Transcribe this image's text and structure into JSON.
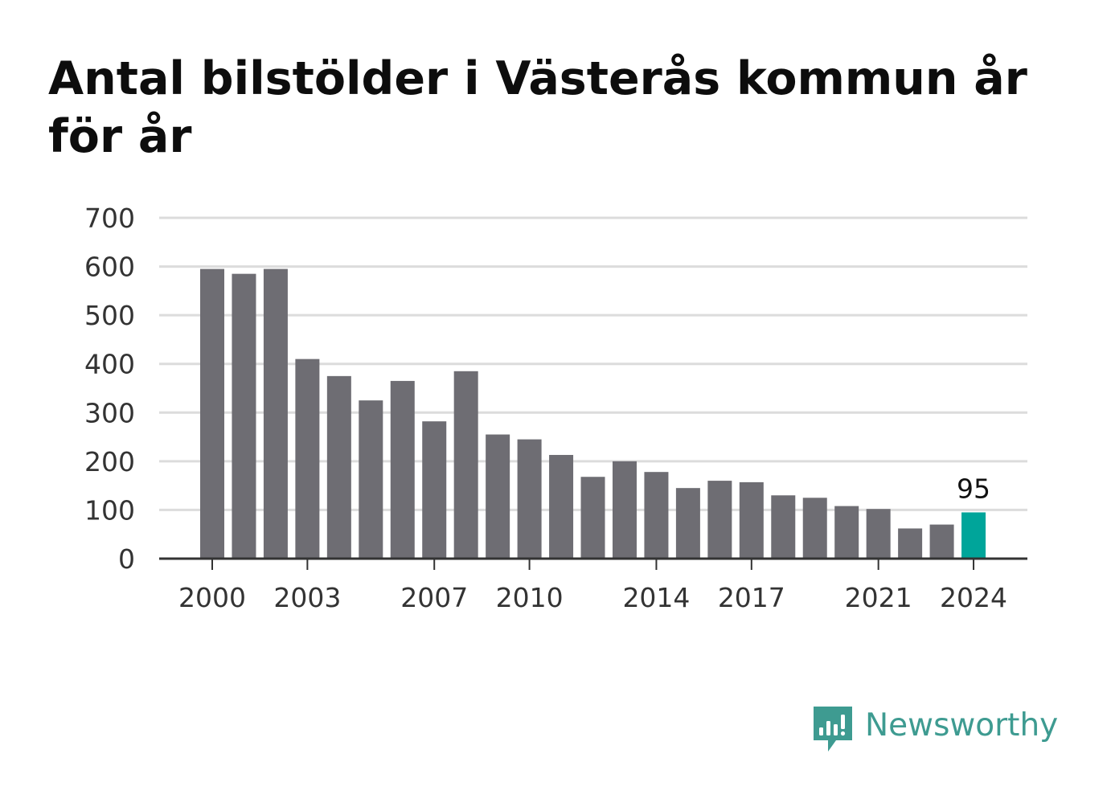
{
  "title": "Antal bilstölder i Västerås kommun år för år",
  "brand": {
    "name": "Newsworthy",
    "icon": "newsworthy-logo-icon",
    "color": "#3e9b91"
  },
  "colors": {
    "bar": "#6e6d73",
    "highlight": "#00a59a",
    "grid": "#dcdcdc",
    "axis": "#333333",
    "tick_text": "#333333"
  },
  "chart_data": {
    "type": "bar",
    "title": "Antal bilstölder i Västerås kommun år för år",
    "xlabel": "",
    "ylabel": "",
    "categories": [
      2000,
      2001,
      2002,
      2003,
      2004,
      2005,
      2006,
      2007,
      2008,
      2009,
      2010,
      2011,
      2012,
      2013,
      2014,
      2015,
      2016,
      2017,
      2018,
      2019,
      2020,
      2021,
      2022,
      2023,
      2024
    ],
    "values": [
      595,
      585,
      595,
      410,
      375,
      325,
      365,
      282,
      385,
      255,
      245,
      213,
      168,
      200,
      178,
      145,
      160,
      157,
      130,
      125,
      108,
      102,
      62,
      70,
      95
    ],
    "ylim": [
      0,
      700
    ],
    "yticks": [
      0,
      100,
      200,
      300,
      400,
      500,
      600,
      700
    ],
    "xtick_labels": [
      2000,
      2003,
      2007,
      2010,
      2014,
      2017,
      2021,
      2024
    ],
    "highlight": {
      "category": 2024,
      "label": "95"
    },
    "grid": true,
    "legend": "none"
  }
}
